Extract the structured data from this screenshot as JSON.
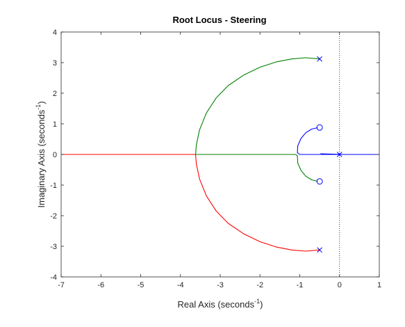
{
  "chart_data": {
    "type": "line",
    "title": "Root Locus - Steering",
    "xlabel": {
      "text": "Real Axis (seconds",
      "sup": "-1",
      "suffix": ")"
    },
    "ylabel": {
      "text": "Imaginary Axis (seconds",
      "sup": "-1",
      "suffix": ")"
    },
    "xlim": [
      -7,
      1
    ],
    "ylim": [
      -4,
      4
    ],
    "xticks": [
      -7,
      -6,
      -5,
      -4,
      -3,
      -2,
      -1,
      0,
      1
    ],
    "yticks": [
      -4,
      -3,
      -2,
      -1,
      0,
      1,
      2,
      3,
      4
    ],
    "grid": false,
    "legend": "none",
    "colors": {
      "series1": "#0000ff",
      "series2": "#008000",
      "series3": "#ff0000",
      "reference": "#000000"
    },
    "poles": [
      {
        "x": -0.5,
        "y": 3.12
      },
      {
        "x": -0.5,
        "y": -3.12
      },
      {
        "x": 0,
        "y": 0
      }
    ],
    "zeros": [
      {
        "x": -0.5,
        "y": 0.88
      },
      {
        "x": -0.5,
        "y": -0.88
      }
    ],
    "branches": [
      {
        "color": "series1",
        "points": [
          [
            0,
            0
          ],
          [
            -0.5,
            0
          ],
          [
            -1.0,
            0
          ],
          [
            -1.06,
            0.06
          ],
          [
            -1.05,
            0.28
          ],
          [
            -0.97,
            0.52
          ],
          [
            -0.85,
            0.71
          ],
          [
            -0.7,
            0.83
          ],
          [
            -0.55,
            0.875
          ]
        ]
      },
      {
        "color": "series1",
        "points": [
          [
            -0.48,
            0.02
          ],
          [
            0.15,
            0
          ],
          [
            1,
            0
          ]
        ]
      },
      {
        "color": "series2",
        "points": [
          [
            -0.5,
            3.12
          ],
          [
            -0.85,
            3.16
          ],
          [
            -1.2,
            3.12
          ],
          [
            -1.6,
            3.02
          ],
          [
            -2.0,
            2.85
          ],
          [
            -2.4,
            2.6
          ],
          [
            -2.8,
            2.25
          ],
          [
            -3.1,
            1.85
          ],
          [
            -3.35,
            1.35
          ],
          [
            -3.52,
            0.8
          ],
          [
            -3.6,
            0.3
          ],
          [
            -3.62,
            0
          ]
        ]
      },
      {
        "color": "series2",
        "points": [
          [
            -3.62,
            0
          ],
          [
            -1.1,
            0
          ],
          [
            -1.06,
            -0.05
          ],
          [
            -1.05,
            -0.28
          ],
          [
            -0.97,
            -0.52
          ],
          [
            -0.85,
            -0.71
          ],
          [
            -0.7,
            -0.83
          ],
          [
            -0.55,
            -0.875
          ]
        ]
      },
      {
        "color": "series3",
        "points": [
          [
            -7,
            0
          ],
          [
            -3.62,
            0
          ]
        ]
      },
      {
        "color": "series3",
        "points": [
          [
            -3.62,
            0
          ],
          [
            -3.6,
            -0.3
          ],
          [
            -3.52,
            -0.8
          ],
          [
            -3.35,
            -1.35
          ],
          [
            -3.1,
            -1.85
          ],
          [
            -2.8,
            -2.25
          ],
          [
            -2.4,
            -2.6
          ],
          [
            -2.0,
            -2.85
          ],
          [
            -1.6,
            -3.02
          ],
          [
            -1.2,
            -3.12
          ],
          [
            -0.85,
            -3.16
          ],
          [
            -0.5,
            -3.12
          ]
        ]
      }
    ]
  }
}
